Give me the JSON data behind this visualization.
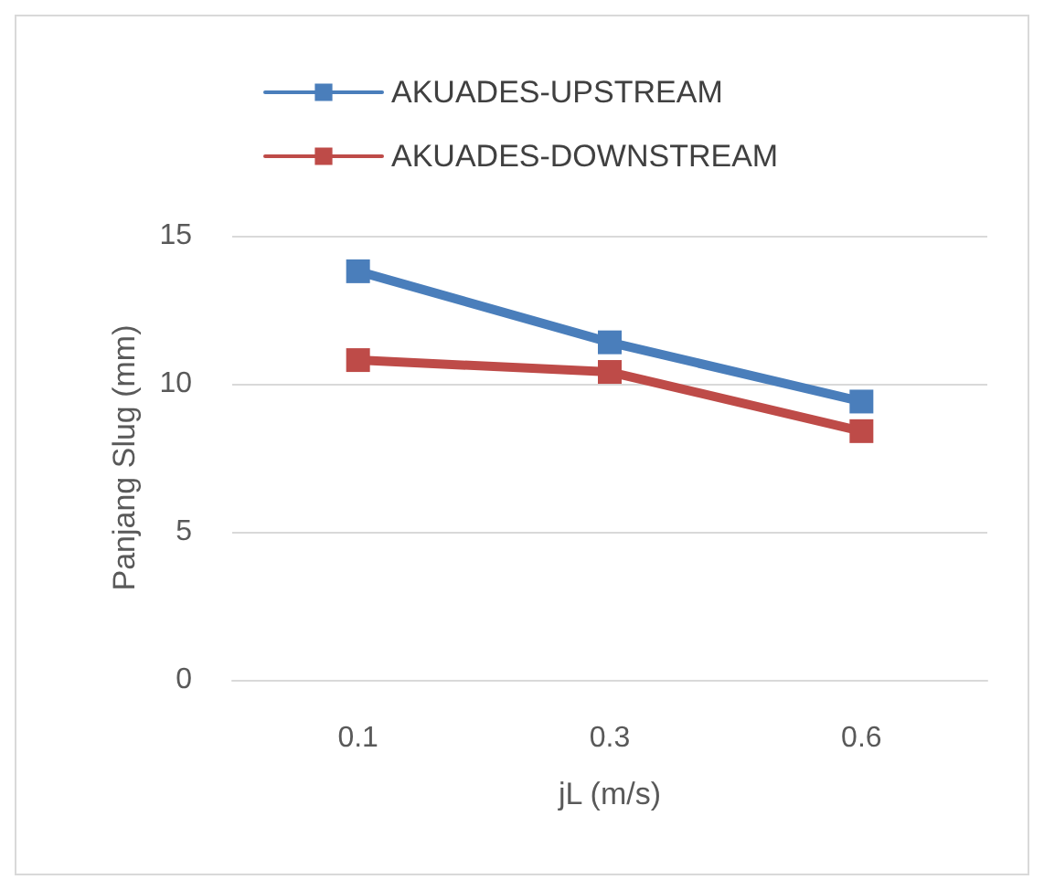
{
  "chart_data": {
    "type": "line",
    "xlabel": "jL (m/s)",
    "ylabel": "Panjang Slug (mm)",
    "categories": [
      "0.1",
      "0.3",
      "0.6"
    ],
    "series": [
      {
        "name": "AKUADES-UPSTREAM",
        "color": "#4a7ebb",
        "values": [
          13.8,
          11.4,
          9.4
        ]
      },
      {
        "name": "AKUADES-DOWNSTREAM",
        "color": "#be4b48",
        "values": [
          10.8,
          10.4,
          8.4
        ]
      }
    ],
    "ylim": [
      0,
      15
    ],
    "yticks": [
      0,
      5,
      10,
      15
    ],
    "grid": "y",
    "legend": "top left",
    "marker": "square",
    "line_style": "solid"
  }
}
